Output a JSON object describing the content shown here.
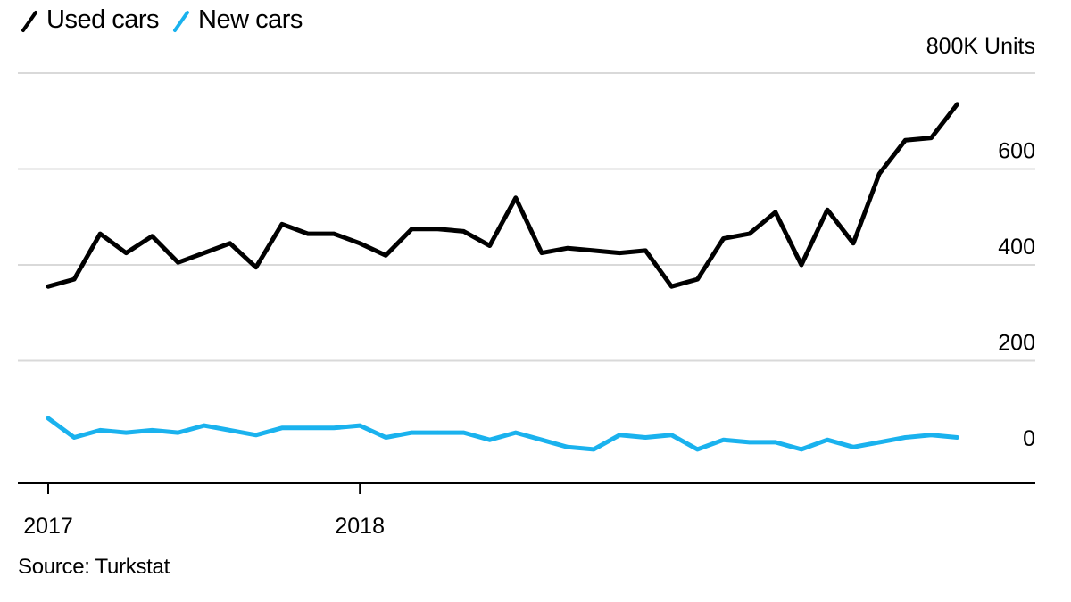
{
  "legend": {
    "items": [
      {
        "label": "Used cars",
        "color": "#000000"
      },
      {
        "label": "New cars",
        "color": "#1ab2ee"
      }
    ]
  },
  "source": "Source: Turkstat",
  "chart_data": {
    "type": "line",
    "x_tick_labels": [
      "2017",
      "2018"
    ],
    "x_start": "2017-01",
    "x_frequency": "monthly",
    "ylim": [
      -30,
      800
    ],
    "y_ticks": [
      {
        "value": 800,
        "label": "800K Units"
      },
      {
        "value": 600,
        "label": "600"
      },
      {
        "value": 400,
        "label": "400"
      },
      {
        "value": 200,
        "label": "200"
      },
      {
        "value": 0,
        "label": "0"
      }
    ],
    "grid": true,
    "y_axis_side": "right",
    "series": [
      {
        "name": "Used cars",
        "color": "#000000",
        "values": [
          355,
          370,
          465,
          425,
          460,
          405,
          425,
          445,
          395,
          485,
          465,
          465,
          445,
          420,
          475,
          475,
          470,
          440,
          540,
          425,
          435,
          430,
          425,
          430,
          355,
          370,
          455,
          465,
          510,
          400,
          515,
          445,
          590,
          660,
          665,
          735
        ]
      },
      {
        "name": "New cars",
        "color": "#1ab2ee",
        "values": [
          80,
          40,
          55,
          50,
          55,
          50,
          65,
          55,
          45,
          60,
          60,
          60,
          65,
          40,
          50,
          50,
          50,
          35,
          50,
          35,
          20,
          15,
          45,
          40,
          45,
          15,
          35,
          30,
          30,
          15,
          35,
          20,
          30,
          40,
          45,
          40
        ]
      }
    ]
  }
}
